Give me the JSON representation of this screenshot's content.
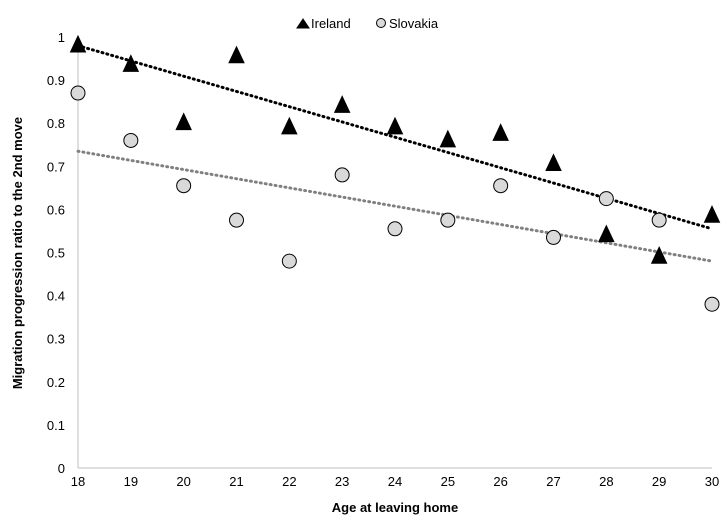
{
  "chart_data": {
    "type": "scatter",
    "xlabel": "Age at leaving home",
    "ylabel": "Migration progression ratio to the 2nd move",
    "x_ticks": [
      "18",
      "19",
      "20",
      "21",
      "22",
      "23",
      "24",
      "25",
      "26",
      "27",
      "28",
      "29",
      "30"
    ],
    "y_ticks": [
      "0",
      "0.1",
      "0.2",
      "0.3",
      "0.4",
      "0.5",
      "0.6",
      "0.7",
      "0.8",
      "0.9",
      "1"
    ],
    "xlim": [
      18,
      30
    ],
    "ylim": [
      0,
      1
    ],
    "grid": false,
    "legend_position": "top",
    "x": [
      18,
      19,
      20,
      21,
      22,
      23,
      24,
      25,
      26,
      27,
      28,
      29,
      30
    ],
    "series": [
      {
        "name": "Ireland",
        "marker": "triangle",
        "color": "#000000",
        "values": [
          0.98,
          0.935,
          0.8,
          0.955,
          0.79,
          0.84,
          0.79,
          0.76,
          0.775,
          0.705,
          0.54,
          0.49,
          0.585
        ],
        "trendline": {
          "start": 0.98,
          "end": 0.555,
          "color": "#000000"
        }
      },
      {
        "name": "Slovakia",
        "marker": "circle",
        "color": "#d9d9d9",
        "values": [
          0.87,
          0.76,
          0.655,
          0.575,
          0.48,
          0.68,
          0.555,
          0.575,
          0.655,
          0.535,
          0.625,
          0.575,
          0.38
        ],
        "trendline": {
          "start": 0.735,
          "end": 0.48,
          "color": "#808080"
        }
      }
    ]
  }
}
